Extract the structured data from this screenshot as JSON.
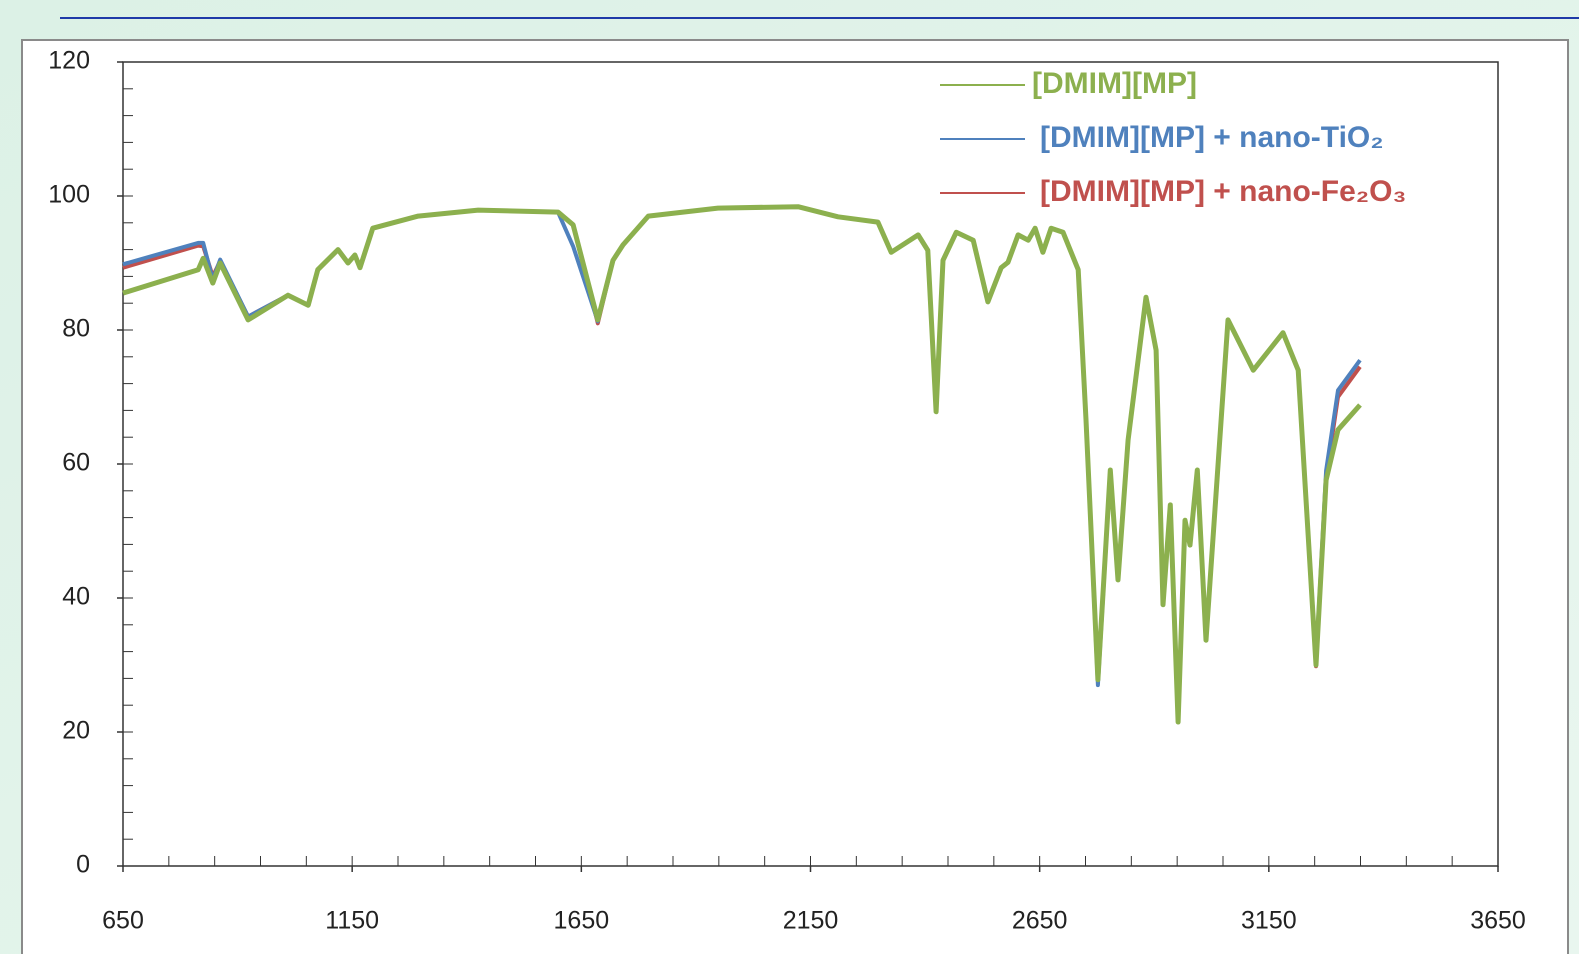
{
  "chart_data": {
    "type": "line",
    "legend": "upper right",
    "xlim": [
      650,
      3650
    ],
    "ylim": [
      0,
      120
    ],
    "xticks": [
      650,
      1150,
      1650,
      2150,
      2650,
      3150,
      3650
    ],
    "yticks": [
      0,
      20,
      40,
      60,
      80,
      100,
      120
    ],
    "xminorticks": [
      650,
      750,
      850,
      950,
      1050,
      1150,
      1250,
      1350,
      1450,
      1550,
      1650,
      1750,
      1850,
      1950,
      2050,
      2150,
      2250,
      2350,
      2450,
      2550,
      2650,
      2750,
      2850,
      2950,
      3050,
      3150,
      3250,
      3350,
      3450,
      3550,
      3650
    ],
    "yminorticks": [
      0,
      4,
      8,
      12,
      16,
      20,
      24,
      28,
      32,
      36,
      40,
      44,
      48,
      52,
      56,
      60,
      64,
      68,
      72,
      76,
      80,
      84,
      88,
      92,
      96,
      100,
      104,
      108,
      112,
      116,
      120
    ],
    "x": [
      650,
      814,
      825,
      846,
      862,
      923,
      1010,
      1054,
      1075,
      1119,
      1141,
      1156,
      1167,
      1195,
      1294,
      1425,
      1599,
      1632,
      1686,
      1719,
      1741,
      1796,
      1948,
      2123,
      2210,
      2297,
      2326,
      2385,
      2406,
      2424,
      2439,
      2468,
      2505,
      2537,
      2566,
      2581,
      2603,
      2625,
      2640,
      2657,
      2675,
      2701,
      2734,
      2751,
      2777,
      2804,
      2821,
      2843,
      2882,
      2904,
      2919,
      2935,
      2952,
      2967,
      2978,
      2994,
      3013,
      3061,
      3116,
      3181,
      3214,
      3253,
      3275,
      3301,
      3349
    ],
    "series": [
      {
        "name": "[DMIM][MP]",
        "color": "#8cb04e",
        "values": [
          85.5,
          89,
          90.7,
          87,
          90,
          81.5,
          85.2,
          83.7,
          89,
          92,
          90,
          91.2,
          89.3,
          95.2,
          97,
          97.9,
          97.6,
          95.7,
          81.5,
          90.4,
          92.7,
          97,
          98.2,
          98.4,
          96.9,
          96.1,
          91.6,
          94.2,
          91.9,
          67.8,
          90.4,
          94.6,
          93.4,
          84.2,
          89.3,
          90.1,
          94.2,
          93.4,
          95.2,
          91.6,
          95.2,
          94.6,
          89,
          66.6,
          27.8,
          59.1,
          42.7,
          63.6,
          84.9,
          77,
          39,
          53.9,
          21.5,
          51.6,
          47.9,
          59.1,
          33.7,
          81.5,
          74,
          79.6,
          74,
          30,
          57.6,
          65.1,
          68.8
        ]
      },
      {
        "name": "[DMIM][MP] + nano-TiO₂",
        "color": "#4f81bd",
        "values": [
          89.8,
          93,
          93,
          87.5,
          90.5,
          82,
          85.2,
          83.7,
          89,
          92,
          90,
          91.2,
          89.3,
          95.2,
          97,
          97.9,
          97.6,
          92.5,
          81.3,
          90.4,
          92.7,
          97,
          98.2,
          98.4,
          96.9,
          96.1,
          91.6,
          94.2,
          91.9,
          67.8,
          90.4,
          94.6,
          93.4,
          84.2,
          89.3,
          90.1,
          94.2,
          93.4,
          95.2,
          91.6,
          95.2,
          94.6,
          89,
          66.6,
          27,
          59.1,
          42.7,
          63.6,
          84.9,
          77,
          39,
          53.9,
          21.8,
          51.6,
          47.9,
          59.1,
          33.7,
          81.5,
          74,
          79.6,
          74,
          30.5,
          59,
          71,
          75.5
        ]
      },
      {
        "name": "[DMIM][MP] + nano-Fe₂O₃",
        "color": "#c0504d",
        "values": [
          89.3,
          92.6,
          92.5,
          88,
          90.3,
          82,
          85.2,
          83.7,
          89,
          92,
          90,
          91.2,
          89.3,
          95.2,
          97,
          97.9,
          97.6,
          95.7,
          81,
          90.4,
          92.7,
          97,
          98.2,
          98.4,
          96.9,
          96.1,
          91.6,
          94.2,
          91.9,
          67.8,
          90.4,
          94.6,
          93.4,
          84.2,
          89.3,
          90.1,
          94.2,
          93.4,
          95.2,
          91.6,
          95.2,
          94.6,
          89,
          66.6,
          28,
          59.1,
          42.7,
          63.6,
          84.9,
          77,
          39,
          53.9,
          21.5,
          51.6,
          47.9,
          59.1,
          33.7,
          81.5,
          74,
          79.6,
          74,
          29.8,
          58,
          70,
          74.5
        ]
      }
    ]
  }
}
